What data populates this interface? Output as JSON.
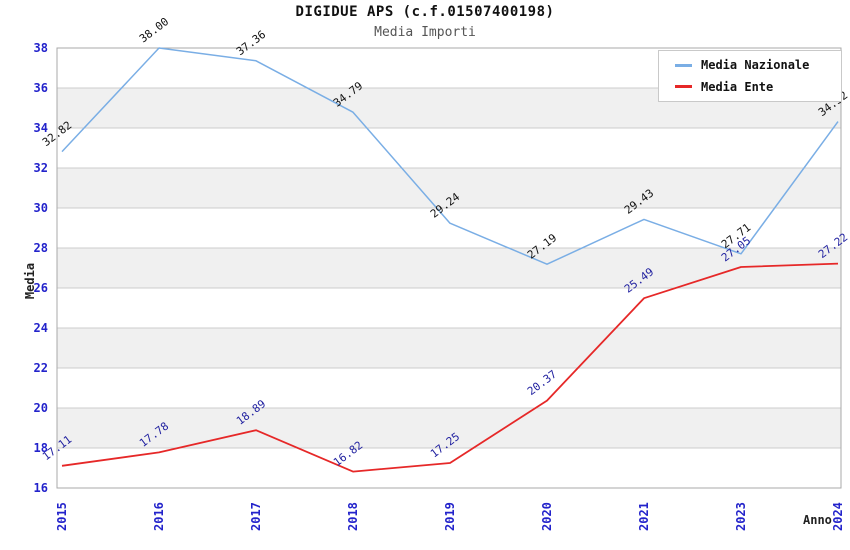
{
  "chart_data": {
    "type": "line",
    "title": "DIGIDUE APS (c.f.01507400198)",
    "subtitle": "Media Importi",
    "xlabel": "Anno",
    "ylabel": "Media",
    "categories": [
      "2015",
      "2016",
      "2017",
      "2018",
      "2019",
      "2020",
      "2021",
      "2023",
      "2024"
    ],
    "series": [
      {
        "name": "Media Nazionale",
        "color": "#7aaee5",
        "label_color": "#111111",
        "values": [
          32.82,
          38.0,
          37.36,
          34.79,
          29.24,
          27.19,
          29.43,
          27.71,
          34.32
        ]
      },
      {
        "name": "Media Ente",
        "color": "#e62828",
        "label_color": "#1f1f9f",
        "values": [
          17.11,
          17.78,
          18.89,
          16.82,
          17.25,
          20.37,
          25.49,
          27.05,
          27.22
        ]
      }
    ],
    "ylim": [
      16,
      38
    ],
    "ytick_step": 2,
    "grid": true,
    "band_colors": [
      "#ffffff",
      "#f0f0f0"
    ],
    "gridline_color": "#cdcdcd",
    "border_color": "#a9a9a9",
    "tick_label_color": "#2323cb",
    "legend_position": "top-right",
    "value_label_angle": -37,
    "x_tick_angle": -90
  }
}
